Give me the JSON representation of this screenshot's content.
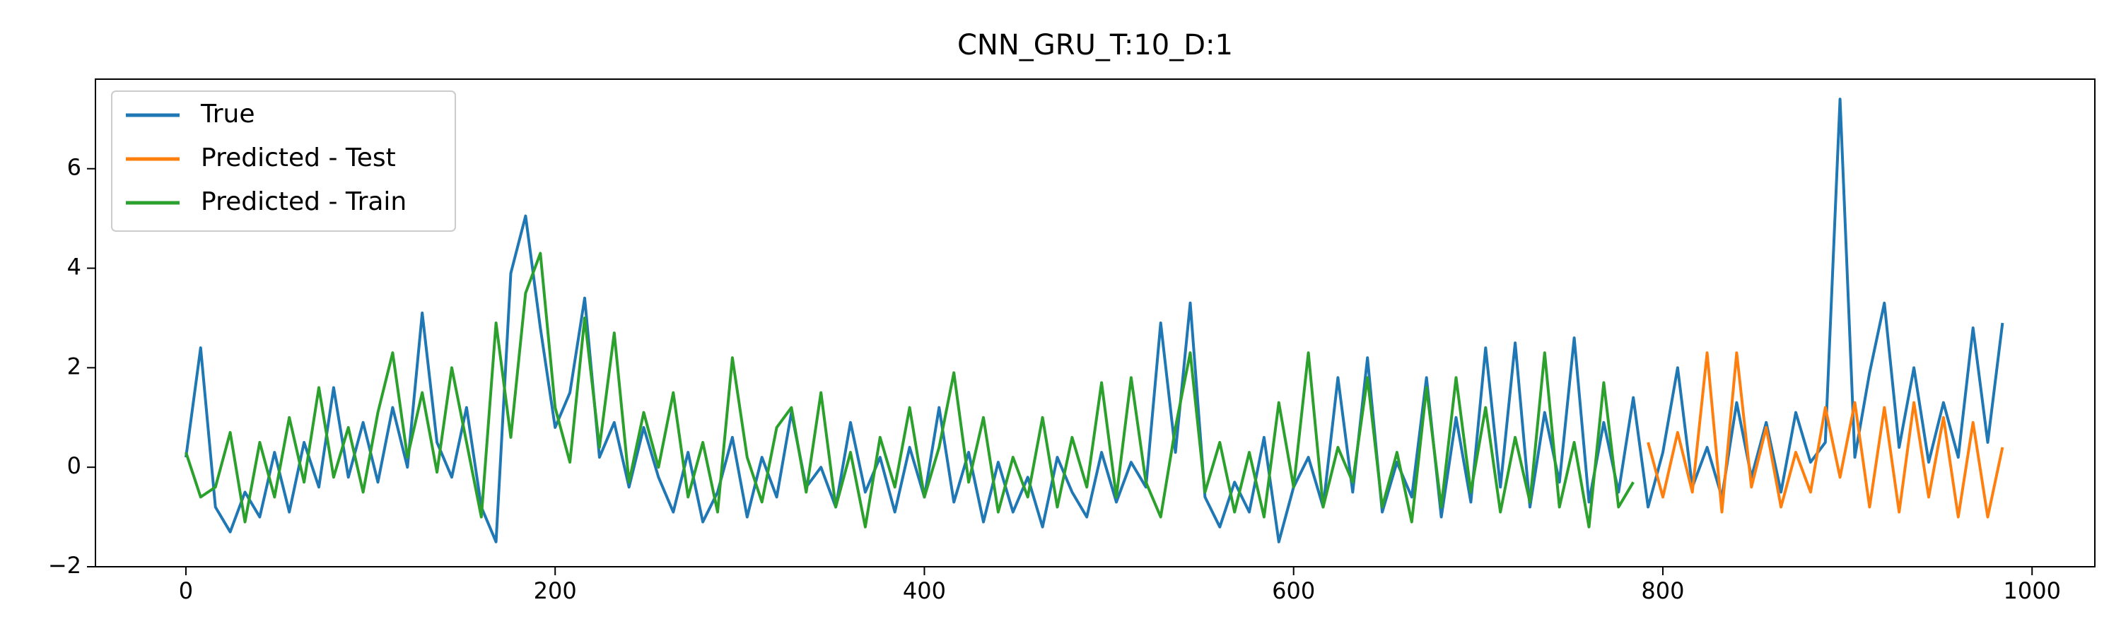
{
  "chart_data": {
    "type": "line",
    "title": "CNN_GRU_T:10_D:1",
    "xlim": [
      -49,
      1034
    ],
    "ylim": [
      -2.0,
      7.8
    ],
    "xticks": [
      0,
      200,
      400,
      600,
      800,
      1000
    ],
    "yticks": [
      {
        "value": -2,
        "label": "−2"
      },
      0,
      2,
      4,
      6
    ],
    "legend": "upper left",
    "series": [
      {
        "name": "True",
        "color": "#1f77b4",
        "x": [
          0,
          8,
          16,
          24,
          32,
          40,
          48,
          56,
          64,
          72,
          80,
          88,
          96,
          104,
          112,
          120,
          128,
          136,
          144,
          152,
          160,
          168,
          176,
          184,
          192,
          200,
          208,
          216,
          224,
          232,
          240,
          248,
          256,
          264,
          272,
          280,
          288,
          296,
          304,
          312,
          320,
          328,
          336,
          344,
          352,
          360,
          368,
          376,
          384,
          392,
          400,
          408,
          416,
          424,
          432,
          440,
          448,
          456,
          464,
          472,
          480,
          488,
          496,
          504,
          512,
          520,
          528,
          536,
          544,
          552,
          560,
          568,
          576,
          584,
          592,
          600,
          608,
          616,
          624,
          632,
          640,
          648,
          656,
          664,
          672,
          680,
          688,
          696,
          704,
          712,
          720,
          728,
          736,
          744,
          752,
          760,
          768,
          776,
          784,
          792,
          800,
          808,
          816,
          824,
          832,
          840,
          848,
          856,
          864,
          872,
          880,
          888,
          896,
          904,
          912,
          920,
          928,
          936,
          944,
          952,
          960,
          968,
          976,
          984
        ],
        "values": [
          0.2,
          2.4,
          -0.8,
          -1.3,
          -0.5,
          -1.0,
          0.3,
          -0.9,
          0.5,
          -0.4,
          1.6,
          -0.2,
          0.9,
          -0.3,
          1.2,
          0.0,
          3.1,
          0.5,
          -0.2,
          1.2,
          -0.8,
          -1.5,
          3.9,
          5.05,
          2.8,
          0.8,
          1.5,
          3.4,
          0.2,
          0.9,
          -0.4,
          0.8,
          -0.2,
          -0.9,
          0.3,
          -1.1,
          -0.5,
          0.6,
          -1.0,
          0.2,
          -0.6,
          1.1,
          -0.4,
          0.0,
          -0.8,
          0.9,
          -0.5,
          0.2,
          -0.9,
          0.4,
          -0.6,
          1.2,
          -0.7,
          0.3,
          -1.1,
          0.1,
          -0.9,
          -0.2,
          -1.2,
          0.2,
          -0.5,
          -1.0,
          0.3,
          -0.7,
          0.1,
          -0.4,
          2.9,
          0.3,
          3.3,
          -0.6,
          -1.2,
          -0.3,
          -0.9,
          0.6,
          -1.5,
          -0.4,
          0.2,
          -0.8,
          1.8,
          -0.5,
          2.2,
          -0.9,
          0.1,
          -0.6,
          1.8,
          -1.0,
          1.0,
          -0.7,
          2.4,
          -0.4,
          2.5,
          -0.8,
          1.1,
          -0.3,
          2.6,
          -0.7,
          0.9,
          -0.5,
          1.4,
          -0.8,
          0.3,
          2.0,
          -0.4,
          0.4,
          -0.6,
          1.3,
          -0.2,
          0.9,
          -0.5,
          1.1,
          0.1,
          0.5,
          7.4,
          0.2,
          1.9,
          3.3,
          0.4,
          2.0,
          0.1,
          1.3,
          0.2,
          2.8,
          0.5,
          2.9
        ]
      },
      {
        "name": "Predicted - Test",
        "color": "#ff7f0e",
        "x": [
          792,
          800,
          808,
          816,
          824,
          832,
          840,
          848,
          856,
          864,
          872,
          880,
          888,
          896,
          904,
          912,
          920,
          928,
          936,
          944,
          952,
          960,
          968,
          976,
          984
        ],
        "values": [
          0.5,
          -0.6,
          0.7,
          -0.5,
          2.3,
          -0.9,
          2.3,
          -0.4,
          0.8,
          -0.8,
          0.3,
          -0.5,
          1.2,
          -0.2,
          1.3,
          -0.8,
          1.2,
          -0.9,
          1.3,
          -0.6,
          1.0,
          -1.0,
          0.9,
          -1.0,
          0.4
        ]
      },
      {
        "name": "Predicted - Train",
        "color": "#2ca02c",
        "x": [
          0,
          8,
          16,
          24,
          32,
          40,
          48,
          56,
          64,
          72,
          80,
          88,
          96,
          104,
          112,
          120,
          128,
          136,
          144,
          152,
          160,
          168,
          176,
          184,
          192,
          200,
          208,
          216,
          224,
          232,
          240,
          248,
          256,
          264,
          272,
          280,
          288,
          296,
          304,
          312,
          320,
          328,
          336,
          344,
          352,
          360,
          368,
          376,
          384,
          392,
          400,
          408,
          416,
          424,
          432,
          440,
          448,
          456,
          464,
          472,
          480,
          488,
          496,
          504,
          512,
          520,
          528,
          536,
          544,
          552,
          560,
          568,
          576,
          584,
          592,
          600,
          608,
          616,
          624,
          632,
          640,
          648,
          656,
          664,
          672,
          680,
          688,
          696,
          704,
          712,
          720,
          728,
          736,
          744,
          752,
          760,
          768,
          776,
          784
        ],
        "values": [
          0.3,
          -0.6,
          -0.4,
          0.7,
          -1.1,
          0.5,
          -0.6,
          1.0,
          -0.3,
          1.6,
          -0.2,
          0.8,
          -0.5,
          1.1,
          2.3,
          0.2,
          1.5,
          -0.1,
          2.0,
          0.5,
          -1.0,
          2.9,
          0.6,
          3.5,
          4.3,
          1.2,
          0.1,
          3.0,
          0.4,
          2.7,
          -0.3,
          1.1,
          0.0,
          1.5,
          -0.6,
          0.5,
          -0.9,
          2.2,
          0.2,
          -0.7,
          0.8,
          1.2,
          -0.5,
          1.5,
          -0.8,
          0.3,
          -1.2,
          0.6,
          -0.4,
          1.2,
          -0.6,
          0.4,
          1.9,
          -0.3,
          1.0,
          -0.9,
          0.2,
          -0.6,
          1.0,
          -0.8,
          0.6,
          -0.4,
          1.7,
          -0.6,
          1.8,
          -0.3,
          -1.0,
          0.8,
          2.3,
          -0.5,
          0.5,
          -0.9,
          0.3,
          -1.0,
          1.3,
          -0.4,
          2.3,
          -0.8,
          0.4,
          -0.3,
          1.8,
          -0.8,
          0.3,
          -1.1,
          1.6,
          -0.8,
          1.8,
          -0.5,
          1.2,
          -0.9,
          0.6,
          -0.7,
          2.3,
          -0.8,
          0.5,
          -1.2,
          1.7,
          -0.8,
          -0.3
        ]
      }
    ]
  }
}
